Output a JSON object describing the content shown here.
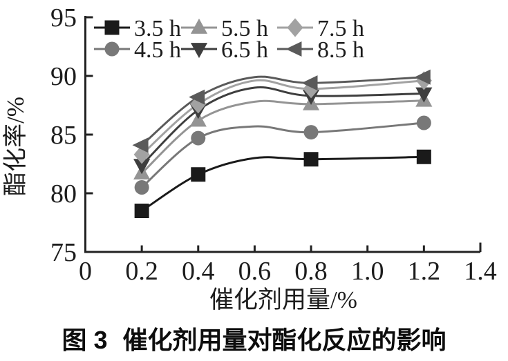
{
  "figure": {
    "caption_prefix": "图 3",
    "caption_text": "催化剂用量对酯化反应的影响"
  },
  "chart_data": {
    "type": "line",
    "title": "",
    "xlabel": "催化剂用量/%",
    "ylabel": "酯化率/%",
    "xlim": [
      0,
      1.4
    ],
    "ylim": [
      75,
      95
    ],
    "xticks": [
      0,
      0.2,
      0.4,
      0.6,
      0.8,
      1.0,
      1.2,
      1.4
    ],
    "xtick_labels": [
      "0",
      "0.2",
      "0.4",
      "0.6",
      "0.8",
      "1.0",
      "1.2",
      "1.4"
    ],
    "yticks": [
      75,
      80,
      85,
      90,
      95
    ],
    "ytick_labels": [
      "75",
      "80",
      "85",
      "90",
      "95"
    ],
    "grid": false,
    "legend": {
      "position": "top-left-inside",
      "columns": 3,
      "fill_order": "column-major"
    },
    "axis_color": "#222222",
    "x": [
      0.2,
      0.4,
      0.8,
      1.2
    ],
    "curve_peak_x": 0.6,
    "series": [
      {
        "name": "3.5 h",
        "marker": "square",
        "color": "#1a1a1a",
        "values": [
          78.5,
          81.6,
          82.9,
          83.1
        ],
        "curve_peak_y": 83.0
      },
      {
        "name": "4.5 h",
        "marker": "circle",
        "color": "#787878",
        "values": [
          80.5,
          84.7,
          85.2,
          86.0
        ],
        "curve_peak_y": 85.7
      },
      {
        "name": "5.5 h",
        "marker": "triangle-up",
        "color": "#949494",
        "values": [
          81.7,
          86.2,
          87.6,
          87.9
        ],
        "curve_peak_y": 87.8
      },
      {
        "name": "6.5 h",
        "marker": "triangle-down",
        "color": "#3e3e3e",
        "values": [
          82.4,
          87.1,
          88.3,
          88.5
        ],
        "curve_peak_y": 89.0
      },
      {
        "name": "7.5 h",
        "marker": "diamond",
        "color": "#a2a2a2",
        "values": [
          83.3,
          87.6,
          88.9,
          89.6
        ],
        "curve_peak_y": 89.6
      },
      {
        "name": "8.5 h",
        "marker": "triangle-left",
        "color": "#5a5a5a",
        "values": [
          84.1,
          88.2,
          89.4,
          89.9
        ],
        "curve_peak_y": 89.9
      }
    ]
  }
}
